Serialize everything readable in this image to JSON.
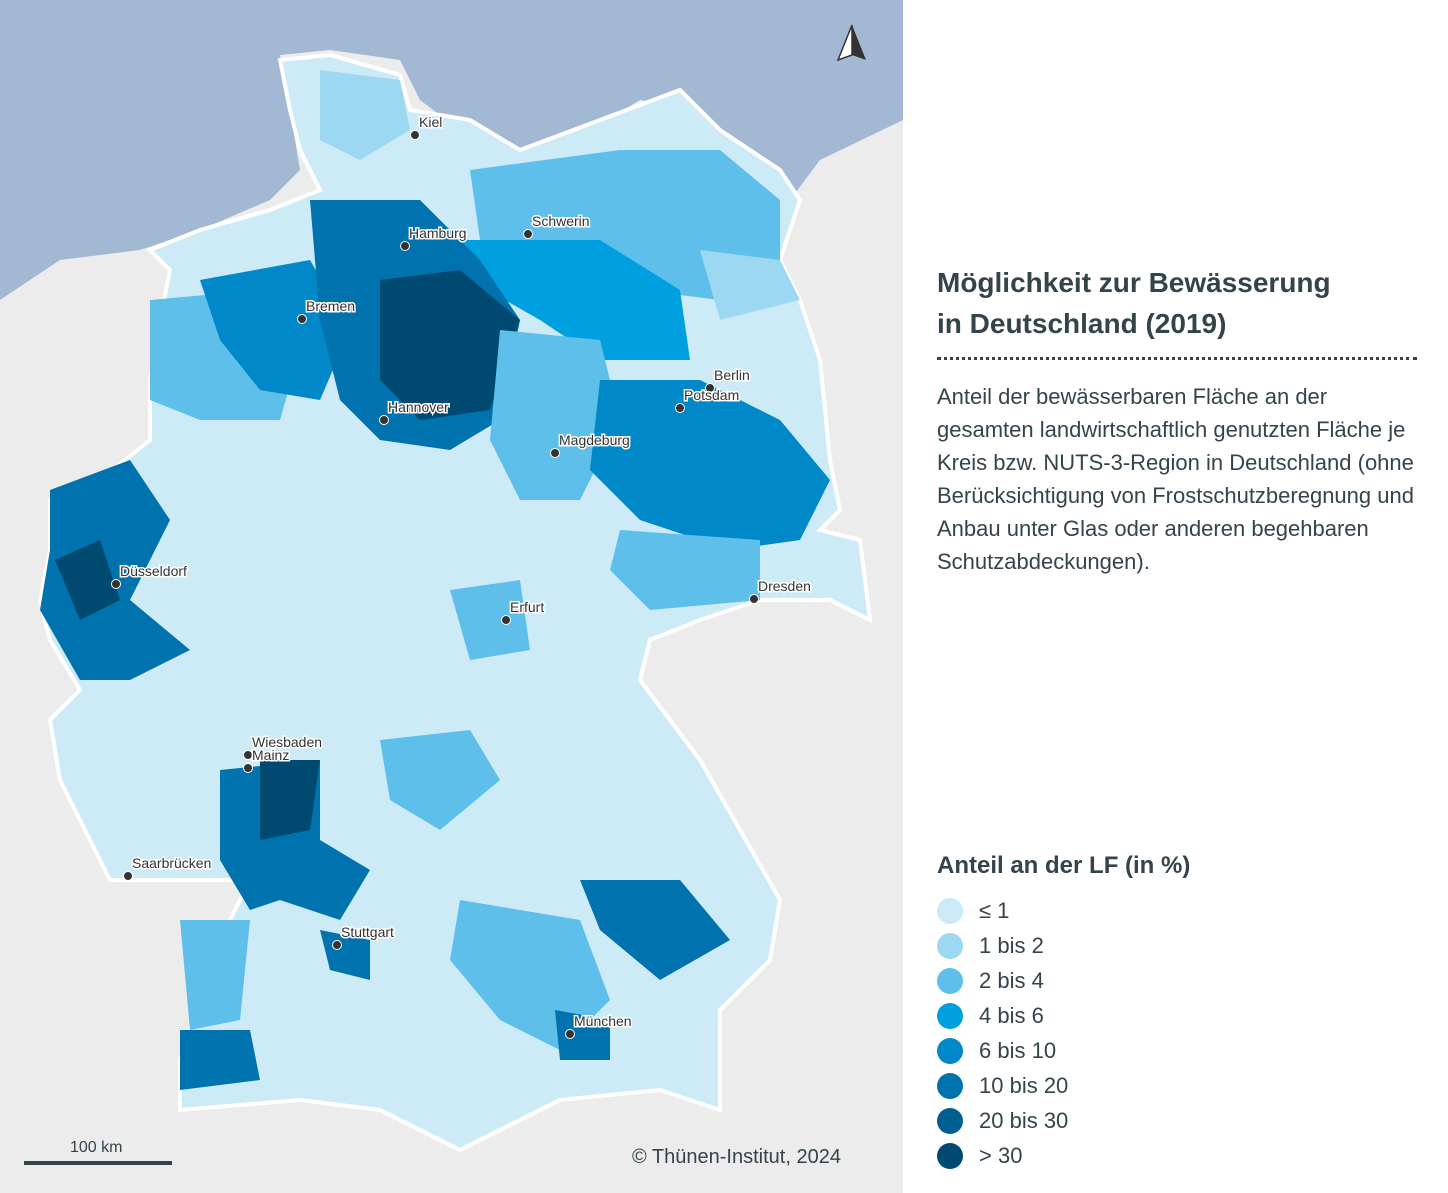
{
  "title_line1": "Möglichkeit zur Bewässerung",
  "title_line2": "in Deutschland (2019)",
  "description": "Anteil der bewässerbaren Fläche an der gesamten landwirtschaftlich genutzten Fläche je Kreis bzw. NUTS-3-Region in Deutschland (ohne Berücksichtigung von Frostschutzberegnung und Anbau unter Glas oder anderen begehbaren Schutzabdeckungen).",
  "legend": {
    "title": "Anteil an der LF (in %)",
    "classes": [
      {
        "label": "≤ 1",
        "color": "#cdeaf7"
      },
      {
        "label": "1 bis 2",
        "color": "#9dd8f2"
      },
      {
        "label": "2 bis 4",
        "color": "#5ec0ea"
      },
      {
        "label": "4 bis 6",
        "color": "#00a0e0"
      },
      {
        "label": "6 bis 10",
        "color": "#0088c8"
      },
      {
        "label": "10 bis 20",
        "color": "#0072ad"
      },
      {
        "label": "20 bis 30",
        "color": "#005f90"
      },
      {
        "label": "> 30",
        "color": "#004a72"
      }
    ]
  },
  "cities": [
    "Kiel",
    "Hamburg",
    "Schwerin",
    "Bremen",
    "Berlin",
    "Potsdam",
    "Hannover",
    "Magdeburg",
    "Düsseldorf",
    "Dresden",
    "Erfurt",
    "Wiesbaden",
    "Mainz",
    "Saarbrücken",
    "Stuttgart",
    "München"
  ],
  "scale_label": "100 km",
  "copyright": "© Thünen-Institut, 2024",
  "colors": {
    "sea": "#a3b8d3",
    "land": "#ececec"
  }
}
